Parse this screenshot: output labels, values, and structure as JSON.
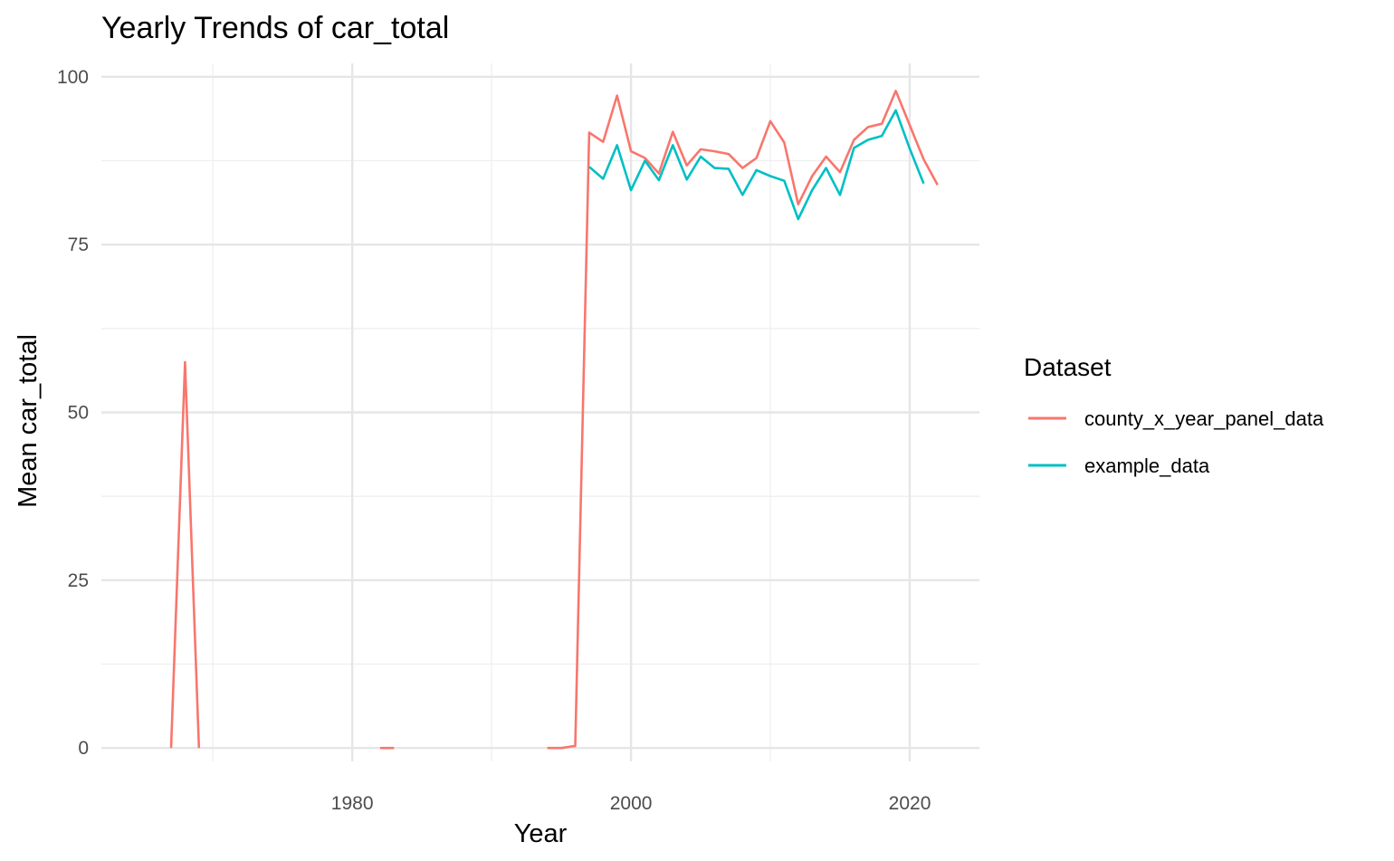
{
  "chart_data": {
    "type": "line",
    "title": "Yearly Trends of car_total",
    "xlabel": "Year",
    "ylabel": "Mean car_total",
    "xlim": [
      1962,
      2025
    ],
    "ylim": [
      -2,
      102
    ],
    "x_ticks": [
      1980,
      2000,
      2020
    ],
    "x_minor_ticks": [
      1970,
      1990,
      2010
    ],
    "y_ticks": [
      0,
      25,
      50,
      75,
      100
    ],
    "y_minor_ticks": [
      12.5,
      37.5,
      62.5,
      87.5
    ],
    "grid": true,
    "legend": {
      "title": "Dataset",
      "position": "right"
    },
    "series": [
      {
        "name": "county_x_year_panel_data",
        "color": "#F8766D",
        "segments": [
          {
            "x": [
              1967,
              1968,
              1969
            ],
            "y": [
              0,
              57.5,
              0
            ]
          },
          {
            "x": [
              1982,
              1983
            ],
            "y": [
              0,
              0
            ]
          },
          {
            "x": [
              1994,
              1995,
              1996,
              1997,
              1998,
              1999,
              2000,
              2001,
              2002,
              2003,
              2004,
              2005,
              2006,
              2007,
              2008,
              2009,
              2010,
              2011,
              2012,
              2013,
              2014,
              2015,
              2016,
              2017,
              2018,
              2019,
              2020,
              2021,
              2022
            ],
            "y": [
              0,
              0,
              0.3,
              91.7,
              90.3,
              97.2,
              88.9,
              87.9,
              85.6,
              91.8,
              86.8,
              89.2,
              88.9,
              88.5,
              86.4,
              87.9,
              93.4,
              90.2,
              81.0,
              85.2,
              88.1,
              85.8,
              90.6,
              92.5,
              93.0,
              97.9,
              92.8,
              87.7,
              83.9
            ]
          }
        ]
      },
      {
        "name": "example_data",
        "color": "#00BFC4",
        "segments": [
          {
            "x": [
              1997,
              1998,
              1999,
              2000,
              2001,
              2002,
              2003,
              2004,
              2005,
              2006,
              2007,
              2008,
              2009,
              2010,
              2011,
              2012,
              2013,
              2014,
              2015,
              2016,
              2017,
              2018,
              2019,
              2020,
              2021
            ],
            "y": [
              86.6,
              84.8,
              89.8,
              83.1,
              87.5,
              84.6,
              89.8,
              84.7,
              88.1,
              86.4,
              86.3,
              82.4,
              86.1,
              85.2,
              84.5,
              78.8,
              83.1,
              86.4,
              82.4,
              89.4,
              90.6,
              91.2,
              95.0,
              89.3,
              84.1
            ]
          }
        ]
      }
    ]
  }
}
